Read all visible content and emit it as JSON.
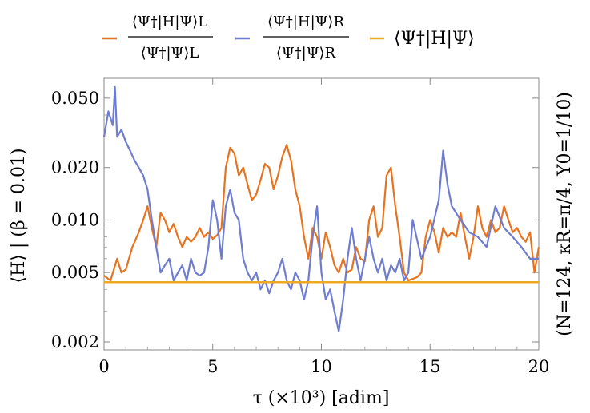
{
  "chart_data": {
    "type": "line",
    "xlabel": "τ (×10³) [adim]",
    "ylabel": "⟨H⟩ | (β = 0.01)",
    "right_label": "(N=124, κR=π/4, Y0=1/10)",
    "xlim": [
      0,
      20
    ],
    "ylim": [
      0.0018,
      0.065
    ],
    "yscale": "log",
    "xticks": [
      0,
      5,
      10,
      15,
      20
    ],
    "xtick_labels": [
      "0",
      "5",
      "10",
      "15",
      "20"
    ],
    "yticks": [
      0.002,
      0.005,
      0.01,
      0.02,
      0.05
    ],
    "ytick_labels": [
      "0.002",
      "0.005",
      "0.010",
      "0.020",
      "0.050"
    ],
    "grid": false,
    "legend_position": "top",
    "legend": {
      "left_num": "⟨Ψ†|H|Ψ⟩L",
      "left_den": "⟨Ψ†|Ψ⟩L",
      "right_num": "⟨Ψ†|H|Ψ⟩R",
      "right_den": "⟨Ψ†|Ψ⟩R",
      "full": "⟨Ψ†|H|Ψ⟩"
    },
    "colors": {
      "L": "#E8731F",
      "R": "#6F7DD1",
      "full": "#EBAA22"
    },
    "series": [
      {
        "key": "L",
        "color": "#E8731F",
        "x": [
          0.0,
          0.3,
          0.6,
          0.8,
          1.0,
          1.3,
          1.6,
          1.8,
          2.0,
          2.2,
          2.4,
          2.6,
          2.8,
          3.0,
          3.2,
          3.4,
          3.6,
          3.8,
          4.0,
          4.2,
          4.4,
          4.6,
          4.8,
          5.0,
          5.2,
          5.4,
          5.6,
          5.8,
          6.0,
          6.2,
          6.4,
          6.6,
          6.8,
          7.0,
          7.2,
          7.4,
          7.6,
          7.8,
          8.0,
          8.2,
          8.4,
          8.6,
          8.8,
          9.0,
          9.2,
          9.4,
          9.6,
          9.8,
          10.0,
          10.2,
          10.4,
          10.6,
          10.8,
          11.0,
          11.2,
          11.4,
          11.6,
          11.8,
          12.0,
          12.2,
          12.4,
          12.6,
          12.8,
          13.0,
          13.2,
          13.4,
          13.6,
          13.8,
          14.0,
          14.2,
          14.4,
          14.6,
          14.8,
          15.0,
          15.2,
          15.4,
          15.6,
          15.8,
          16.0,
          16.2,
          16.4,
          16.6,
          16.8,
          17.0,
          17.2,
          17.4,
          17.6,
          17.8,
          18.0,
          18.2,
          18.4,
          18.6,
          18.8,
          19.0,
          19.2,
          19.4,
          19.6,
          19.8,
          20.0
        ],
        "y": [
          0.0048,
          0.0045,
          0.006,
          0.005,
          0.0052,
          0.007,
          0.0085,
          0.01,
          0.012,
          0.009,
          0.007,
          0.011,
          0.01,
          0.0085,
          0.0095,
          0.008,
          0.007,
          0.008,
          0.0075,
          0.008,
          0.009,
          0.008,
          0.0085,
          0.0078,
          0.0082,
          0.009,
          0.02,
          0.026,
          0.024,
          0.018,
          0.02,
          0.016,
          0.013,
          0.014,
          0.017,
          0.021,
          0.02,
          0.015,
          0.018,
          0.023,
          0.027,
          0.022,
          0.015,
          0.012,
          0.008,
          0.006,
          0.009,
          0.008,
          0.006,
          0.0085,
          0.007,
          0.0055,
          0.005,
          0.006,
          0.005,
          0.0052,
          0.007,
          0.006,
          0.0058,
          0.01,
          0.012,
          0.008,
          0.009,
          0.018,
          0.02,
          0.012,
          0.008,
          0.005,
          0.0045,
          0.0046,
          0.0047,
          0.005,
          0.008,
          0.01,
          0.0085,
          0.0065,
          0.009,
          0.008,
          0.0085,
          0.008,
          0.011,
          0.008,
          0.006,
          0.008,
          0.012,
          0.009,
          0.008,
          0.01,
          0.0085,
          0.009,
          0.012,
          0.01,
          0.0085,
          0.009,
          0.008,
          0.0075,
          0.0085,
          0.005,
          0.007
        ]
      },
      {
        "key": "R",
        "color": "#6F7DD1",
        "x": [
          0.0,
          0.2,
          0.4,
          0.5,
          0.6,
          0.8,
          1.0,
          1.2,
          1.4,
          1.6,
          1.8,
          2.0,
          2.2,
          2.4,
          2.6,
          2.8,
          3.0,
          3.2,
          3.4,
          3.6,
          3.8,
          4.0,
          4.2,
          4.4,
          4.6,
          4.8,
          5.0,
          5.2,
          5.4,
          5.6,
          5.8,
          6.0,
          6.2,
          6.4,
          6.6,
          6.8,
          7.0,
          7.2,
          7.4,
          7.6,
          7.8,
          8.0,
          8.2,
          8.4,
          8.6,
          8.8,
          9.0,
          9.2,
          9.4,
          9.6,
          9.8,
          10.0,
          10.2,
          10.4,
          10.6,
          10.8,
          11.0,
          11.2,
          11.4,
          11.6,
          11.8,
          12.0,
          12.2,
          12.4,
          12.6,
          12.8,
          13.0,
          13.2,
          13.4,
          13.6,
          13.8,
          14.0,
          14.2,
          14.6,
          15.0,
          15.4,
          15.6,
          15.8,
          16.0,
          16.4,
          16.8,
          17.2,
          17.6,
          18.0,
          18.4,
          18.8,
          19.2,
          19.6,
          20.0
        ],
        "y": [
          0.03,
          0.042,
          0.035,
          0.058,
          0.03,
          0.033,
          0.028,
          0.025,
          0.022,
          0.02,
          0.018,
          0.015,
          0.01,
          0.007,
          0.005,
          0.0055,
          0.006,
          0.0045,
          0.005,
          0.0055,
          0.0045,
          0.006,
          0.005,
          0.0048,
          0.005,
          0.007,
          0.013,
          0.01,
          0.006,
          0.012,
          0.015,
          0.011,
          0.01,
          0.006,
          0.005,
          0.0045,
          0.005,
          0.004,
          0.0045,
          0.0038,
          0.0045,
          0.005,
          0.006,
          0.0045,
          0.004,
          0.005,
          0.0045,
          0.0035,
          0.0045,
          0.008,
          0.012,
          0.005,
          0.0035,
          0.004,
          0.003,
          0.0023,
          0.0035,
          0.006,
          0.009,
          0.006,
          0.0045,
          0.006,
          0.008,
          0.006,
          0.005,
          0.006,
          0.0045,
          0.0055,
          0.005,
          0.006,
          0.0045,
          0.005,
          0.01,
          0.006,
          0.008,
          0.013,
          0.025,
          0.016,
          0.012,
          0.01,
          0.0085,
          0.008,
          0.007,
          0.012,
          0.009,
          0.008,
          0.007,
          0.006,
          0.006
        ]
      },
      {
        "key": "full",
        "color": "#EBAA22",
        "x": [
          0,
          20
        ],
        "y": [
          0.0044,
          0.0044
        ]
      }
    ]
  }
}
